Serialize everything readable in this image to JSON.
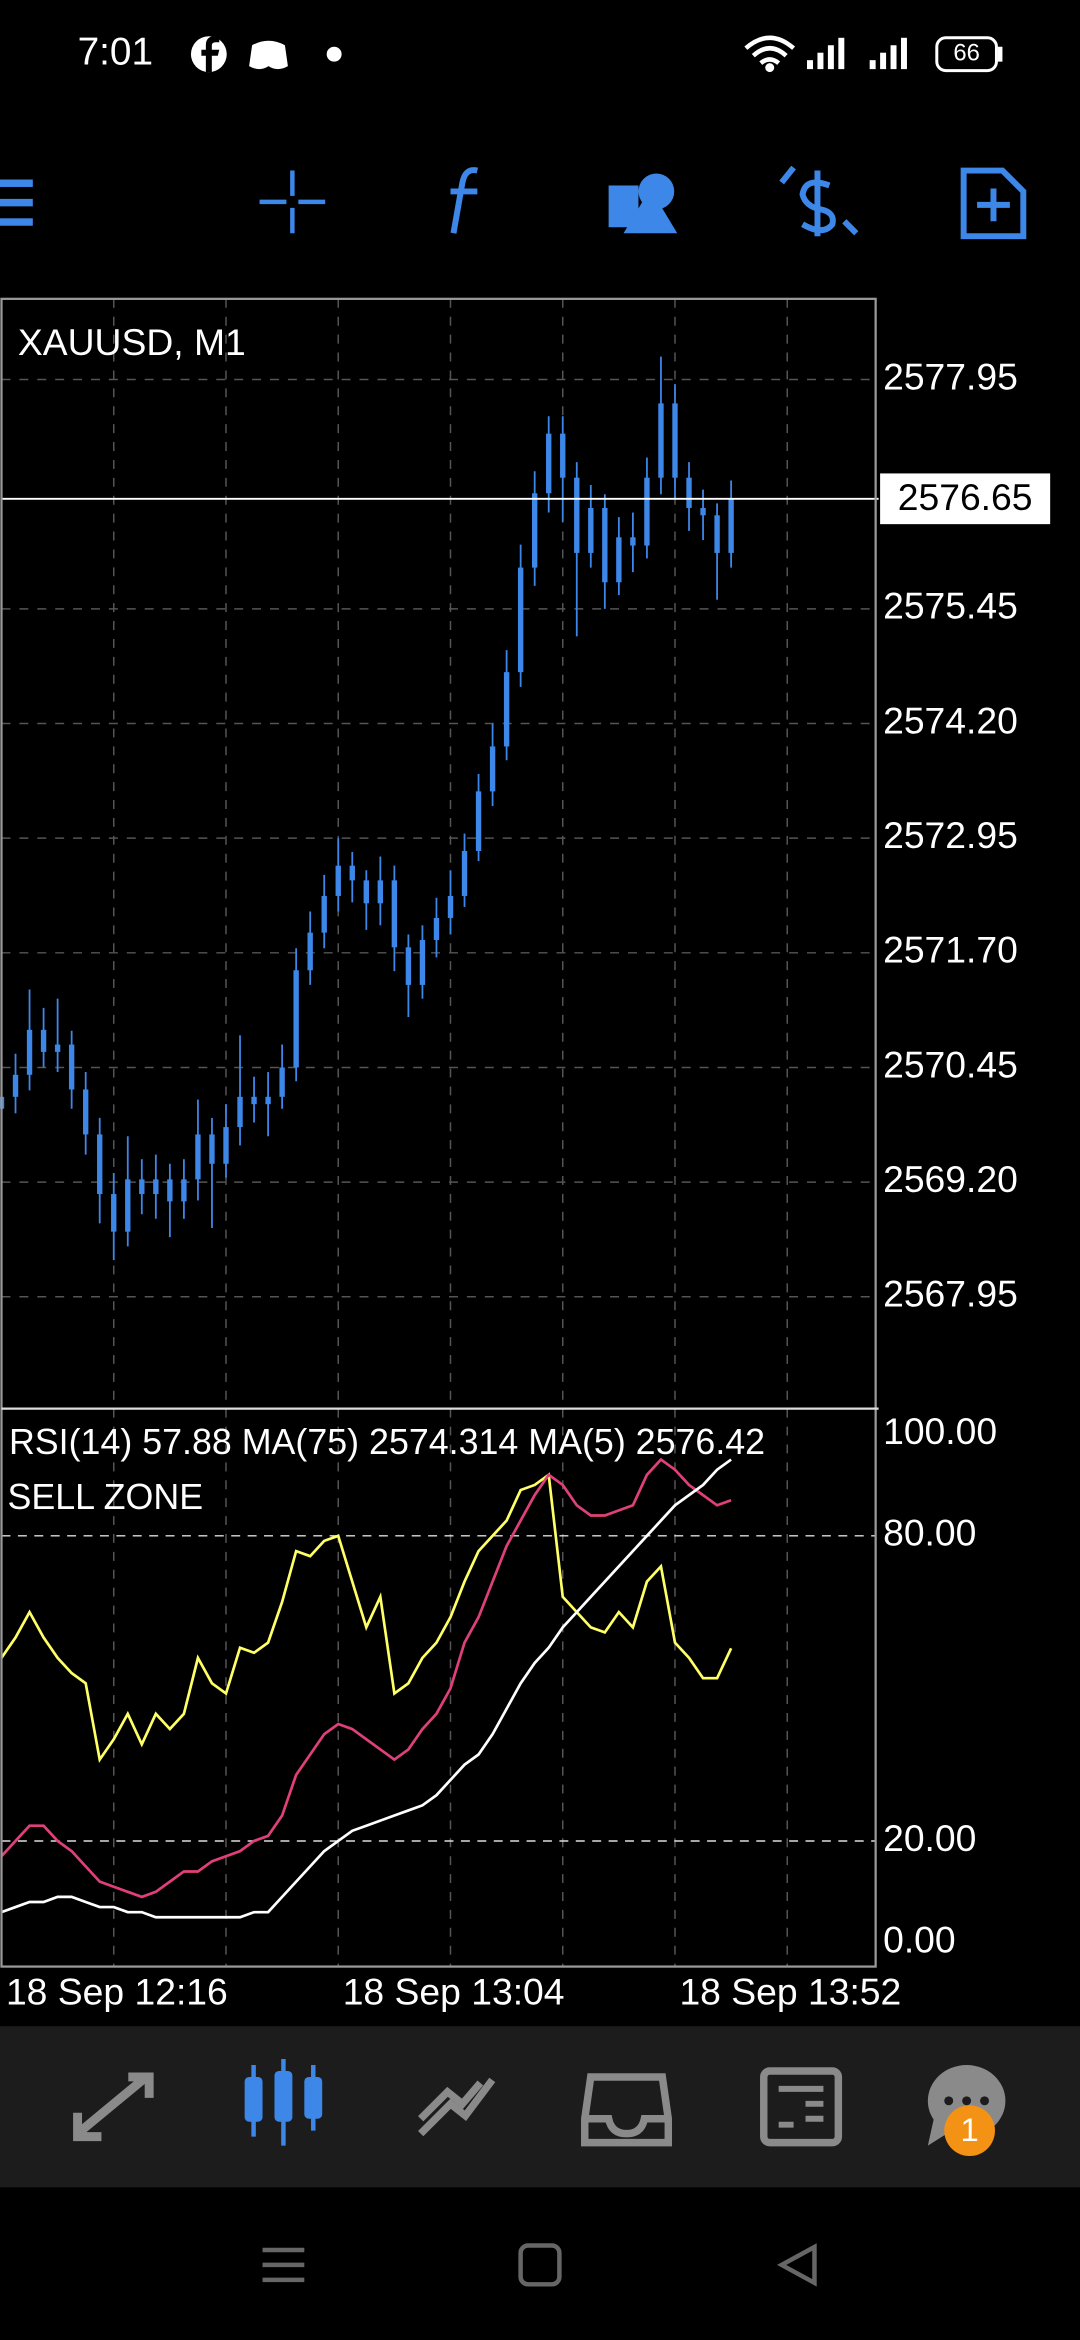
{
  "status_bar": {
    "time": "7:01",
    "battery": "66"
  },
  "nav_badge": 1,
  "chart_data": [
    {
      "type": "candlestick",
      "title": "XAUUSD, M1",
      "color": "#3d87e8",
      "x": [
        0,
        2,
        4,
        6,
        8,
        10,
        12,
        14,
        16,
        18,
        20,
        22,
        24,
        26,
        28,
        30,
        32,
        34,
        36,
        38,
        40,
        42,
        44,
        46,
        48,
        50,
        52,
        54,
        56,
        58,
        60,
        62,
        64,
        66,
        68,
        70,
        72,
        74,
        76,
        78,
        80,
        82,
        84,
        86,
        88,
        90,
        92,
        94,
        96,
        98,
        100,
        102,
        104
      ],
      "open": [
        2570.0,
        2570.13,
        2570.37,
        2570.86,
        2570.62,
        2570.7,
        2570.21,
        2569.72,
        2569.07,
        2568.66,
        2569.23,
        2569.07,
        2569.23,
        2568.99,
        2569.23,
        2569.72,
        2569.4,
        2569.8,
        2570.13,
        2570.05,
        2570.13,
        2570.45,
        2571.51,
        2571.92,
        2572.32,
        2572.65,
        2572.49,
        2572.24,
        2572.49,
        2571.76,
        2571.35,
        2571.84,
        2572.08,
        2572.32,
        2572.81,
        2573.46,
        2573.95,
        2574.76,
        2575.9,
        2576.71,
        2577.36,
        2576.88,
        2576.06,
        2576.55,
        2575.74,
        2576.23,
        2576.14,
        2576.88,
        2577.69,
        2576.88,
        2576.55,
        2576.47,
        2576.06
      ],
      "high": [
        2570.35,
        2570.6,
        2571.3,
        2571.1,
        2571.2,
        2570.85,
        2570.4,
        2569.9,
        2569.3,
        2569.7,
        2569.45,
        2569.5,
        2569.4,
        2569.45,
        2570.1,
        2569.9,
        2570.05,
        2570.8,
        2570.35,
        2570.4,
        2570.7,
        2571.75,
        2572.15,
        2572.55,
        2572.95,
        2572.8,
        2572.6,
        2572.75,
        2572.65,
        2571.9,
        2572.0,
        2572.3,
        2572.6,
        2573.0,
        2573.65,
        2574.2,
        2575.0,
        2576.15,
        2576.95,
        2577.55,
        2577.55,
        2577.05,
        2576.8,
        2576.7,
        2576.45,
        2576.5,
        2577.1,
        2578.2,
        2577.9,
        2577.05,
        2576.75,
        2576.6,
        2576.85
      ],
      "low": [
        2569.85,
        2569.95,
        2570.2,
        2570.45,
        2570.4,
        2570.0,
        2569.5,
        2568.75,
        2568.35,
        2568.5,
        2568.85,
        2568.8,
        2568.6,
        2568.8,
        2569.0,
        2568.7,
        2569.25,
        2569.6,
        2569.85,
        2569.7,
        2570.0,
        2570.3,
        2571.35,
        2571.75,
        2572.15,
        2572.25,
        2571.95,
        2572.0,
        2571.5,
        2571.0,
        2571.2,
        2571.65,
        2571.9,
        2572.2,
        2572.7,
        2573.3,
        2573.8,
        2574.6,
        2575.7,
        2576.5,
        2576.4,
        2575.15,
        2575.9,
        2575.45,
        2575.6,
        2575.85,
        2576.0,
        2576.7,
        2576.65,
        2576.3,
        2576.2,
        2575.55,
        2575.9
      ],
      "close": [
        2570.13,
        2570.37,
        2570.86,
        2570.62,
        2570.7,
        2570.21,
        2569.72,
        2569.07,
        2568.66,
        2569.23,
        2569.07,
        2569.23,
        2568.99,
        2569.23,
        2569.72,
        2569.4,
        2569.8,
        2570.13,
        2570.05,
        2570.13,
        2570.45,
        2571.51,
        2571.92,
        2572.32,
        2572.65,
        2572.49,
        2572.24,
        2572.49,
        2571.76,
        2571.35,
        2571.84,
        2572.08,
        2572.32,
        2572.81,
        2573.46,
        2573.95,
        2574.76,
        2575.9,
        2576.71,
        2577.36,
        2576.88,
        2576.06,
        2576.55,
        2575.74,
        2576.23,
        2576.14,
        2576.88,
        2577.69,
        2576.88,
        2576.55,
        2576.47,
        2576.06,
        2576.65
      ],
      "current_price": 2576.65,
      "xlim": [
        0,
        124.6
      ],
      "xgrid": [
        16,
        32,
        48,
        64,
        80,
        96,
        112
      ],
      "ylim": [
        2566.73,
        2578.83
      ],
      "yticks": [
        2577.95,
        2575.45,
        {
          "value": 2574.2,
          "label": "2574.20"
        },
        2572.95,
        {
          "value": 2571.7,
          "label": "2571.70"
        },
        2570.45,
        {
          "value": 2569.2,
          "label": "2569.20"
        },
        2567.95
      ],
      "grid": true
    },
    {
      "type": "line",
      "title": "RSI(14) 57.88 MA(75) 2574.314 MA(5) 2576.42",
      "subtitle": "SELL ZONE",
      "x": [
        0,
        2,
        4,
        6,
        8,
        10,
        12,
        14,
        16,
        18,
        20,
        22,
        24,
        26,
        28,
        30,
        32,
        34,
        36,
        38,
        40,
        42,
        44,
        46,
        48,
        50,
        52,
        54,
        56,
        58,
        60,
        62,
        64,
        66,
        68,
        70,
        72,
        74,
        76,
        78,
        80,
        82,
        84,
        86,
        88,
        90,
        92,
        94,
        96,
        98,
        100,
        102,
        104
      ],
      "series": [
        {
          "color": "#ffff66",
          "values": [
            56,
            60,
            65,
            60,
            56,
            53,
            51,
            36,
            40,
            45,
            39,
            45,
            42,
            45,
            56,
            51,
            49,
            58,
            57,
            59,
            67,
            77,
            76,
            79,
            80,
            71,
            62,
            68,
            49,
            51,
            56,
            59,
            64,
            71,
            77,
            80,
            83,
            89,
            90,
            92,
            68,
            65,
            62,
            61,
            65,
            62,
            71,
            74,
            59,
            56,
            52,
            52,
            57.88
          ]
        },
        {
          "color": "#e0407a",
          "values": [
            17,
            20,
            23,
            23,
            20,
            18,
            15,
            12,
            11,
            10,
            9,
            10,
            12,
            14,
            14,
            16,
            17,
            18,
            20,
            21,
            25,
            33,
            37,
            41,
            43,
            42,
            40,
            38,
            36,
            38,
            42,
            45,
            50,
            59,
            64,
            71,
            78,
            83,
            88,
            92,
            90,
            86,
            84,
            84,
            85,
            86,
            92,
            95,
            93,
            90,
            88,
            86,
            87
          ]
        },
        {
          "color": "#ffffff",
          "values": [
            6,
            7,
            8,
            8,
            9,
            9,
            8,
            7,
            7,
            6,
            6,
            5,
            5,
            5,
            5,
            5,
            5,
            5,
            6,
            6,
            9,
            12,
            15,
            18,
            20,
            22,
            23,
            24,
            25,
            26,
            27,
            29,
            32,
            35,
            37,
            41,
            46,
            51,
            55,
            58,
            62,
            65,
            68,
            71,
            74,
            77,
            80,
            83,
            86,
            88,
            90,
            93,
            95
          ]
        }
      ],
      "xlim": [
        0,
        124.6
      ],
      "xticks": [
        {
          "value": 0,
          "label": "18 Sep 12:16"
        },
        {
          "value": 48,
          "label": "18 Sep 13:04"
        },
        {
          "value": 96,
          "label": "18 Sep 13:52"
        }
      ],
      "ylim": [
        -4.7,
        105
      ],
      "yticks": [
        {
          "value": 100,
          "label": "100.00"
        },
        {
          "value": 80,
          "label": "80.00"
        },
        {
          "value": 20,
          "label": "20.00"
        },
        {
          "value": 0,
          "label": "0.00"
        }
      ],
      "levels": [
        20,
        80
      ]
    }
  ]
}
